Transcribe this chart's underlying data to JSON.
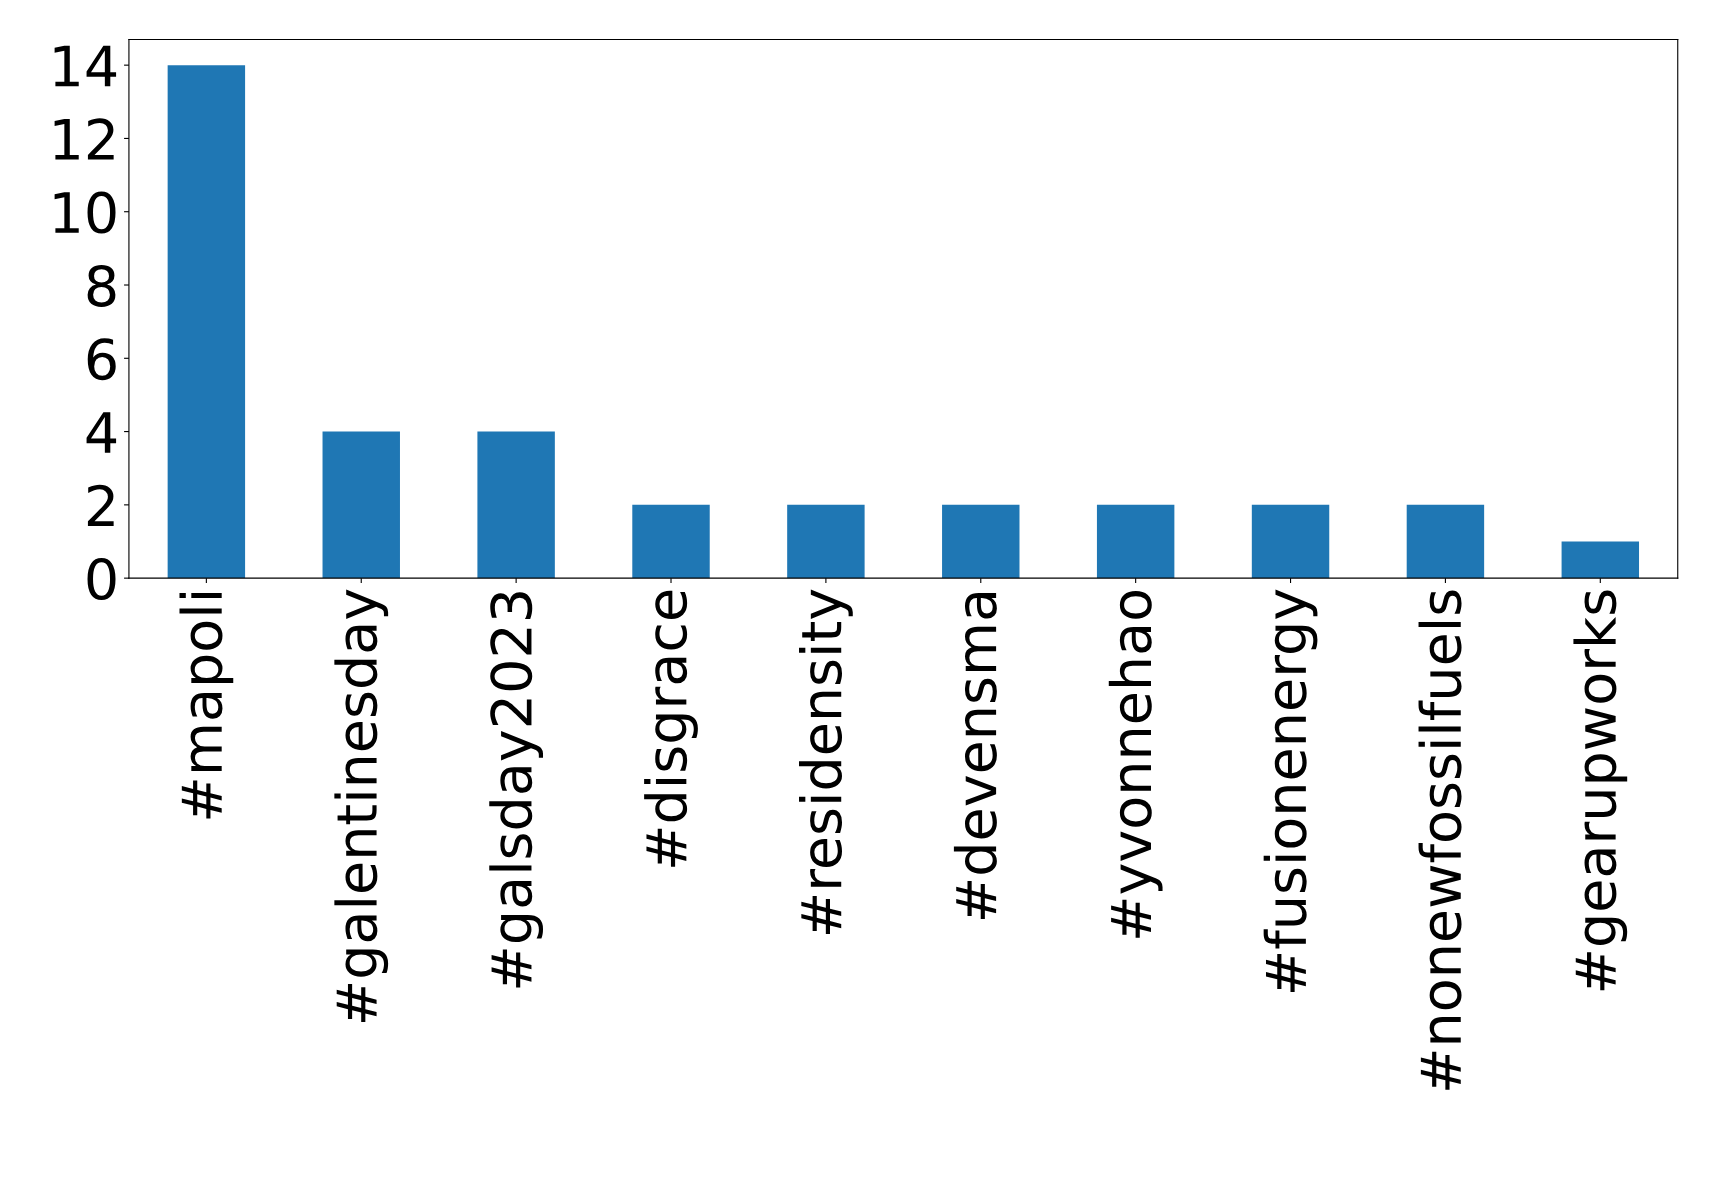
{
  "chart_data": {
    "type": "bar",
    "categories": [
      "#mapoli",
      "#galentinesday",
      "#galsday2023",
      "#disgrace",
      "#residensity",
      "#devensma",
      "#yvonnehao",
      "#fusionenergy",
      "#nonewfossilfuels",
      "#gearupworks"
    ],
    "values": [
      14,
      4,
      4,
      2,
      2,
      2,
      2,
      2,
      2,
      1
    ],
    "color": "#1f77b4",
    "ylim": [
      0,
      14.7
    ],
    "yticks": [
      0,
      2,
      4,
      6,
      8,
      10,
      12,
      14
    ],
    "grid": false,
    "legend": false
  }
}
